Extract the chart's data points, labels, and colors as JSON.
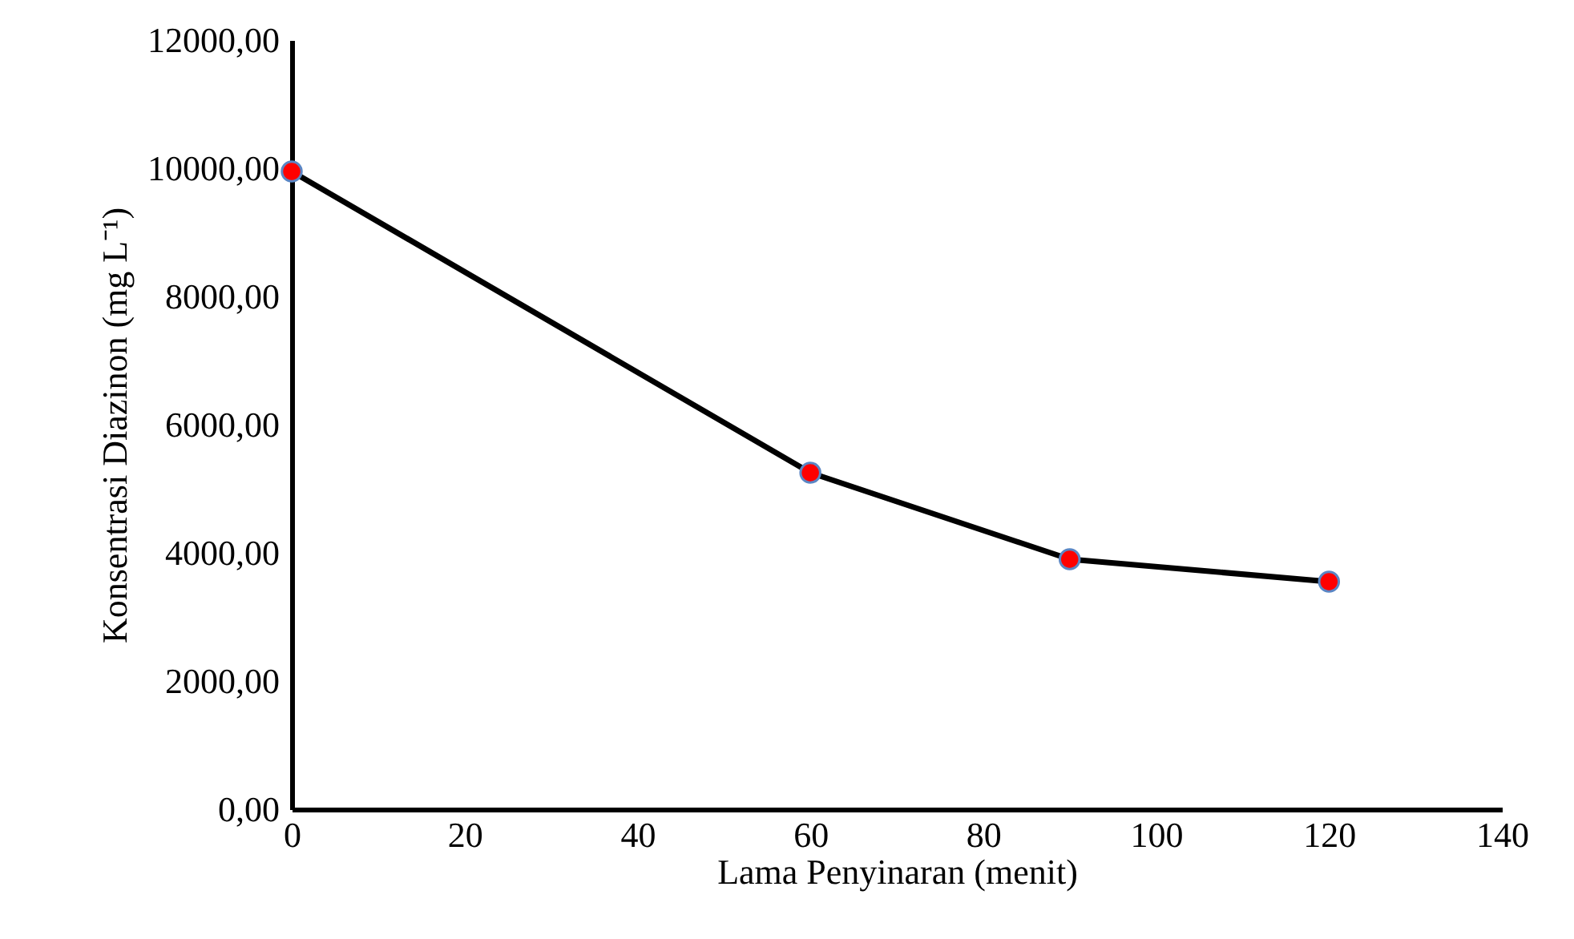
{
  "chart_data": {
    "type": "line",
    "xlabel": "Lama Penyinaran (menit)",
    "ylabel": "Konsentrasi Diazinon (mg L⁻¹)",
    "x": [
      0,
      60,
      90,
      120
    ],
    "series": [
      {
        "color": "#000000",
        "colors": [
          "#ff0000",
          "#ff0000",
          "#ff0000",
          "#ff0000"
        ],
        "values": [
          9950,
          5250,
          3900,
          3550
        ]
      }
    ],
    "xlim": [
      0,
      140
    ],
    "xticks": [
      0,
      20,
      40,
      60,
      80,
      100,
      120,
      140
    ],
    "ylim": [
      0,
      12000
    ],
    "yticks": [
      {
        "value": 0,
        "label": "0,00"
      },
      {
        "value": 2000,
        "label": "2000,00"
      },
      {
        "value": 4000,
        "label": "4000,00"
      },
      {
        "value": 6000,
        "label": "6000,00"
      },
      {
        "value": 8000,
        "label": "8000,00"
      },
      {
        "value": 10000,
        "label": "10000,00"
      },
      {
        "value": 12000,
        "label": "12000,00"
      }
    ],
    "grid": false,
    "marker": "circle",
    "line_style": "solid"
  }
}
